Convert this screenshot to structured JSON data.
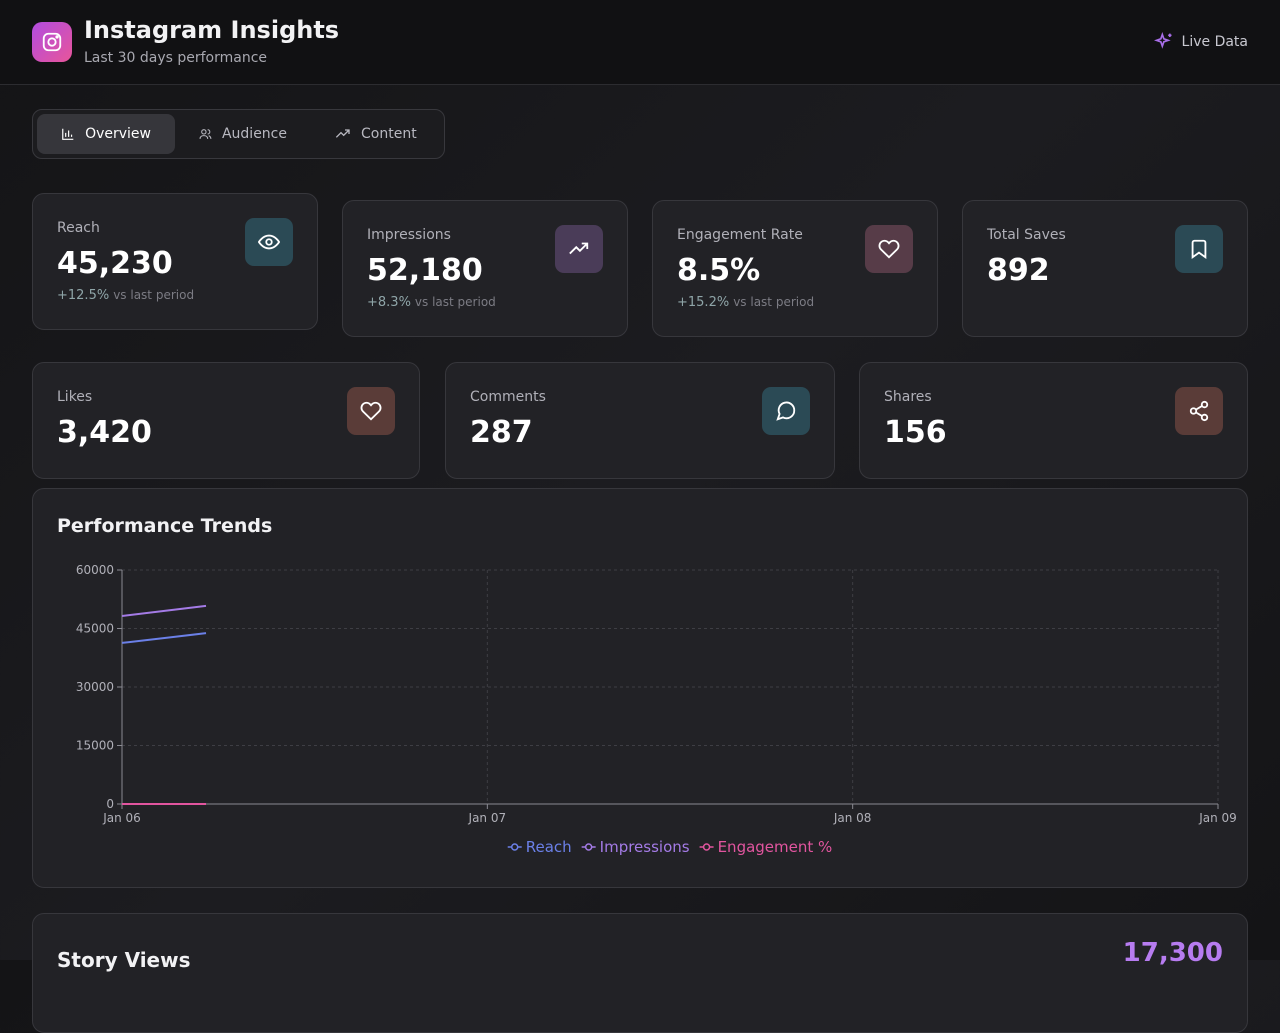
{
  "header": {
    "title": "Instagram Insights",
    "subtitle": "Last 30 days performance",
    "status": "Live Data"
  },
  "tabs": [
    "Overview",
    "Audience",
    "Content"
  ],
  "stat_cards": [
    {
      "label": "Reach",
      "value": "45,230",
      "change": "+12.5%",
      "change_note": "vs last period"
    },
    {
      "label": "Impressions",
      "value": "52,180",
      "change": "+8.3%",
      "change_note": "vs last period"
    },
    {
      "label": "Engagement Rate",
      "value": "8.5%",
      "change": "+15.2%",
      "change_note": "vs last period"
    },
    {
      "label": "Total Saves",
      "value": "892"
    },
    {
      "label": "Likes",
      "value": "3,420"
    },
    {
      "label": "Comments",
      "value": "287"
    },
    {
      "label": "Shares",
      "value": "156"
    }
  ],
  "chart_data": {
    "type": "line",
    "title": "Performance Trends",
    "x": [
      0,
      0.23
    ],
    "xlim": [
      0,
      3
    ],
    "xticks": [
      {
        "value": 0,
        "label": "Jan 06"
      },
      {
        "value": 1,
        "label": "Jan 07"
      },
      {
        "value": 2,
        "label": "Jan 08"
      },
      {
        "value": 3,
        "label": "Jan 09"
      }
    ],
    "ylim": [
      0,
      60000
    ],
    "yticks": [
      0,
      15000,
      30000,
      45000,
      60000
    ],
    "grid": true,
    "series": [
      {
        "name": "Reach",
        "color": "#6b80e8",
        "values": [
          41300,
          43800
        ]
      },
      {
        "name": "Impressions",
        "color": "#a47be6",
        "values": [
          48200,
          50800
        ]
      },
      {
        "name": "Engagement %",
        "color": "#e2559f",
        "values": [
          8.2,
          8.5
        ]
      }
    ]
  },
  "story": {
    "title": "Story Views",
    "value": "17,300"
  }
}
